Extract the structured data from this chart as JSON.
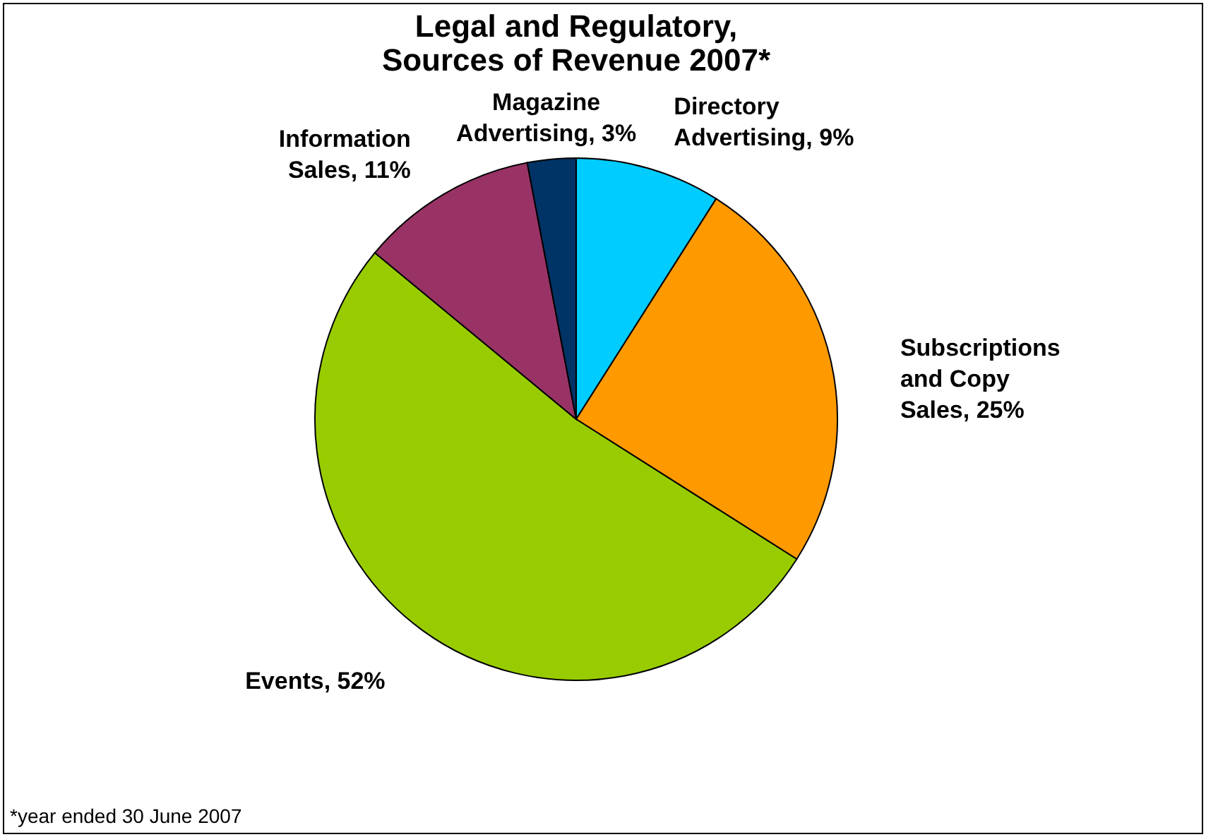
{
  "chart_data": {
    "type": "pie",
    "title": "Legal and Regulatory, Sources of Revenue 2007*",
    "categories": [
      "Directory Advertising",
      "Subscriptions and Copy Sales",
      "Events",
      "Information Sales",
      "Magazine Advertising"
    ],
    "values": [
      9,
      25,
      52,
      11,
      3
    ],
    "value_labels": [
      "9%",
      "25%",
      "52%",
      "11%",
      "3%"
    ],
    "colors": [
      "#00ccff",
      "#ff9900",
      "#99cc00",
      "#993366",
      "#003366"
    ],
    "legend": false,
    "annotations": [
      "*year ended 30 June 2007"
    ]
  }
}
